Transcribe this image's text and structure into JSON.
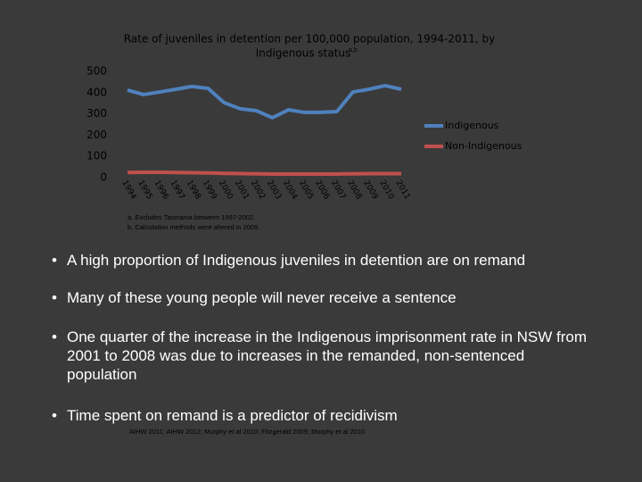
{
  "chart_data": {
    "type": "line",
    "title": "Rate of juveniles in detention per 100,000 population, 1994-2011, by",
    "title_line2": "Indigenous status",
    "title_superscript": "a,b",
    "categories": [
      "1994",
      "1995",
      "1996",
      "1997",
      "1998",
      "1999",
      "2000",
      "2001",
      "2002",
      "2003",
      "2004",
      "2005",
      "2006",
      "2007",
      "2008",
      "2009",
      "2010",
      "2011"
    ],
    "series": [
      {
        "name": "Indigenous",
        "color": "#4f81bd",
        "values": [
          412,
          391,
          403,
          416,
          429,
          420,
          353,
          324,
          315,
          282,
          319,
          307,
          307,
          311,
          403,
          416,
          433,
          416
        ]
      },
      {
        "name": "Non-Indigenous",
        "color": "#c0504d",
        "values": [
          24,
          25,
          25,
          24,
          23,
          22,
          20,
          19,
          18,
          17,
          17,
          17,
          17,
          17,
          18,
          19,
          19,
          19
        ]
      }
    ],
    "ylim": [
      0,
      500
    ],
    "yticks": [
      0,
      100,
      200,
      300,
      400,
      500
    ],
    "grid": false,
    "legend": "right"
  },
  "notes": [
    "a. Excludes Tasmania between 1997-2002.",
    "b. Calculation methods were altered in 2009."
  ],
  "bullets": [
    "A high proportion of  Indigenous juveniles in detention are on remand",
    "Many of these young people will never receive a sentence",
    "One quarter of the increase in the Indigenous imprisonment rate in NSW from 2001 to 2008 was due to increases in the remanded, non-sentenced population",
    "Time spent on remand is a predictor of recidivism"
  ],
  "citation": "AIHW 2011; AIHW 2012; Murphy et al 2010; Fitzgerald 2009; Murphy et al 2010"
}
